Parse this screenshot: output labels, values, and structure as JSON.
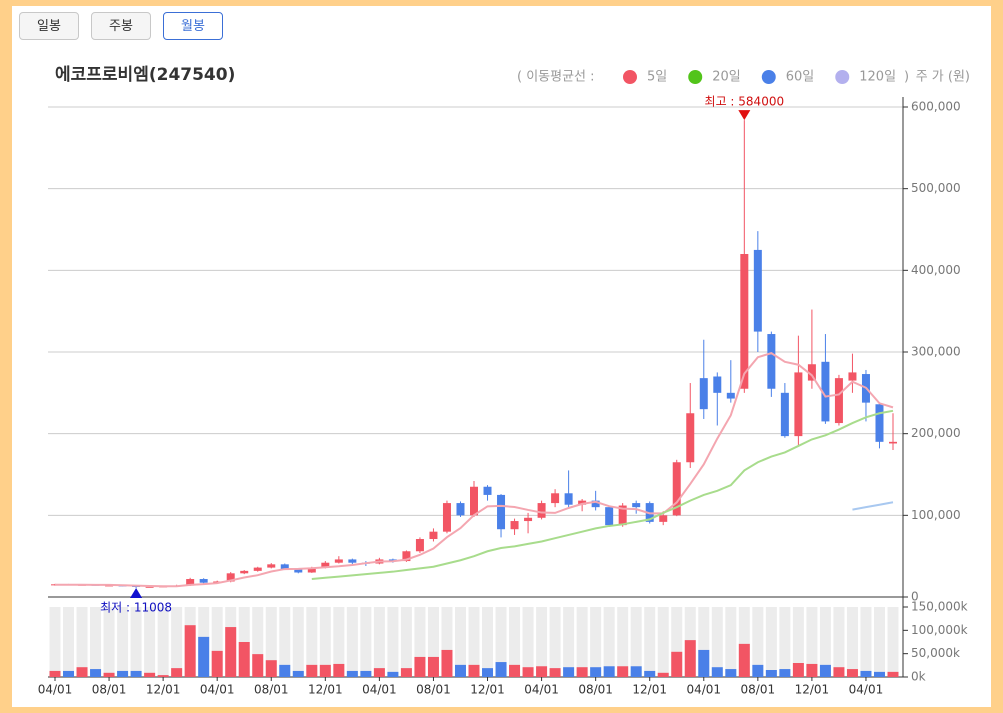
{
  "buttons": [
    "일봉",
    "주봉",
    "월봉"
  ],
  "selected_button": 2,
  "chart_data": {
    "type": "candlestick",
    "title": "에코프로비엠(247540)",
    "y_label": "주 가 (원)",
    "ma_legend_open": "( 이동평균선  :",
    "ma_legend_close": ")",
    "annotations": {
      "high": "최고 : 584000",
      "low": "최저 : 11008"
    },
    "up_color": "#f25564",
    "down_color": "#4a80e8",
    "categories": [
      "04/01",
      null,
      null,
      null,
      "08/01",
      null,
      null,
      null,
      "12/01",
      null,
      null,
      null,
      "04/01",
      null,
      null,
      null,
      "08/01",
      null,
      null,
      null,
      "12/01",
      null,
      null,
      null,
      "04/01",
      null,
      null,
      null,
      "08/01",
      null,
      null,
      null,
      "12/01",
      null,
      null,
      null,
      "04/01",
      null,
      null,
      null,
      "08/01",
      null,
      null,
      null,
      "12/01",
      null,
      null,
      null,
      "04/01",
      null,
      null,
      null,
      "08/01",
      null,
      null,
      null,
      "12/01",
      null,
      null,
      null,
      "04/01",
      null,
      null
    ],
    "open": [
      14500,
      15500,
      14800,
      15000,
      14000,
      14200,
      13500,
      12300,
      12500,
      13000,
      14000,
      22000,
      17500,
      19000,
      29000,
      32000,
      36000,
      40000,
      34000,
      30000,
      36000,
      42000,
      46000,
      42000,
      41000,
      46000,
      44000,
      56000,
      71000,
      80000,
      115000,
      100000,
      135000,
      125000,
      83000,
      93000,
      97000,
      115000,
      127000,
      113000,
      118000,
      110000,
      88000,
      115000,
      115000,
      92000,
      100000,
      165000,
      268000,
      270000,
      250000,
      255000,
      425000,
      322000,
      250000,
      197000,
      265000,
      288000,
      213000,
      265000,
      273000,
      236000,
      188000
    ],
    "high": [
      16000,
      16000,
      15500,
      15300,
      15000,
      14500,
      13800,
      13000,
      13500,
      15000,
      23500,
      23000,
      20000,
      30500,
      33000,
      37000,
      41500,
      41000,
      35000,
      37000,
      44000,
      50000,
      47000,
      44000,
      48000,
      47000,
      57000,
      73000,
      84000,
      118000,
      117000,
      142000,
      137000,
      126000,
      96000,
      103000,
      118000,
      132000,
      155000,
      120000,
      130000,
      112000,
      115000,
      118000,
      117000,
      105000,
      168000,
      262000,
      315000,
      275000,
      290000,
      584000,
      448000,
      325000,
      262000,
      320000,
      352000,
      322000,
      272000,
      298000,
      278000,
      238000,
      225000
    ],
    "low": [
      14000,
      14300,
      14200,
      14000,
      13500,
      13000,
      11008,
      11800,
      12000,
      12500,
      13500,
      16500,
      16500,
      18000,
      28000,
      31000,
      35000,
      33000,
      29000,
      29500,
      35000,
      41000,
      40000,
      38000,
      40000,
      42000,
      43000,
      54000,
      68000,
      78000,
      98000,
      98000,
      118000,
      73000,
      76000,
      78000,
      95000,
      110000,
      110000,
      105000,
      106000,
      86000,
      86000,
      102000,
      90000,
      88000,
      99000,
      158000,
      218000,
      210000,
      238000,
      250000,
      300000,
      245000,
      195000,
      185000,
      255000,
      212000,
      210000,
      250000,
      215000,
      182000,
      180000
    ],
    "close": [
      15500,
      14800,
      15000,
      14500,
      14200,
      13500,
      12500,
      12500,
      13000,
      14000,
      22000,
      17500,
      19000,
      29000,
      32000,
      36000,
      40000,
      34000,
      30000,
      36000,
      42000,
      46000,
      42000,
      41000,
      46000,
      44000,
      56000,
      71000,
      80000,
      115000,
      100000,
      135000,
      125000,
      83000,
      93000,
      97000,
      115000,
      127000,
      113000,
      118000,
      110000,
      88000,
      112000,
      110000,
      92000,
      100000,
      165000,
      225000,
      230000,
      250000,
      243000,
      420000,
      325000,
      255000,
      197000,
      275000,
      285000,
      215000,
      268000,
      275000,
      238000,
      190000,
      190000
    ],
    "volume": [
      13000,
      13000,
      21000,
      17000,
      9000,
      13000,
      13000,
      9000,
      4000,
      19000,
      111000,
      86000,
      56000,
      107000,
      75000,
      49000,
      36000,
      26000,
      13000,
      26000,
      26000,
      28000,
      13000,
      13000,
      19000,
      11000,
      19000,
      43000,
      43000,
      58000,
      26000,
      26000,
      19000,
      32000,
      26000,
      21000,
      23000,
      19000,
      21000,
      21000,
      21000,
      23000,
      23000,
      23000,
      13000,
      9000,
      54000,
      79000,
      58000,
      21000,
      17000,
      71000,
      26000,
      15000,
      17000,
      30000,
      28000,
      26000,
      21000,
      17000,
      13000,
      11000,
      11000
    ],
    "ylim": [
      0,
      600000
    ],
    "yticks": [
      0,
      {
        "value": 100000,
        "label": "100,000"
      },
      {
        "value": 200000,
        "label": "200,000"
      },
      {
        "value": 300000,
        "label": "300,000"
      },
      {
        "value": 400000,
        "label": "400,000"
      },
      {
        "value": 500000,
        "label": "500,000"
      },
      {
        "value": 600000,
        "label": "600,000"
      }
    ],
    "volume_ylim": [
      0,
      150000
    ],
    "volume_ticks": [
      {
        "value": 0,
        "label": "0k"
      },
      {
        "value": 50000,
        "label": "50,000k"
      },
      {
        "value": 100000,
        "label": "100,000k"
      },
      {
        "value": 150000,
        "label": "150,000k"
      }
    ],
    "grid": true,
    "series": [
      {
        "name": "5일",
        "color": "#f25564",
        "line_color": "#f4a6b0",
        "values": [
          15000,
          15000,
          15000,
          14800,
          14800,
          14400,
          13900,
          13400,
          13100,
          13100,
          14800,
          15800,
          17000,
          20300,
          23900,
          26700,
          31200,
          34200,
          34400,
          35200,
          36400,
          37600,
          39200,
          41400,
          43400,
          43800,
          45800,
          51600,
          59400,
          73200,
          84400,
          100200,
          111000,
          111600,
          110200,
          106600,
          103400,
          103000,
          109000,
          114000,
          116600,
          111200,
          108200,
          107600,
          102400,
          102400,
          115800,
          138400,
          162400,
          194000,
          222600,
          273600,
          293600,
          298600,
          288000,
          284400,
          271400,
          245400,
          248000,
          263600,
          256200,
          237200,
          232200
        ]
      },
      {
        "name": "20일",
        "color": "#52c41a",
        "line_color": "#a8dc8c",
        "values": [
          null,
          null,
          null,
          null,
          null,
          null,
          null,
          null,
          null,
          null,
          null,
          null,
          null,
          null,
          null,
          null,
          null,
          null,
          null,
          22000,
          23500,
          25000,
          26500,
          28000,
          29500,
          31000,
          33000,
          35000,
          37000,
          41000,
          45000,
          50000,
          56000,
          60000,
          62000,
          65000,
          68000,
          72000,
          76000,
          80000,
          84000,
          87000,
          89000,
          92000,
          95000,
          103000,
          110000,
          118000,
          125000,
          130000,
          137000,
          155000,
          165000,
          172000,
          177000,
          185000,
          193000,
          198000,
          205000,
          213000,
          220000,
          225000,
          228000
        ]
      },
      {
        "name": "60일",
        "color": "#4a80e8",
        "line_color": "#a8c8f0",
        "values": [
          null,
          null,
          null,
          null,
          null,
          null,
          null,
          null,
          null,
          null,
          null,
          null,
          null,
          null,
          null,
          null,
          null,
          null,
          null,
          null,
          null,
          null,
          null,
          null,
          null,
          null,
          null,
          null,
          null,
          null,
          null,
          null,
          null,
          null,
          null,
          null,
          null,
          null,
          null,
          null,
          null,
          null,
          null,
          null,
          null,
          null,
          null,
          null,
          null,
          null,
          null,
          null,
          null,
          null,
          null,
          null,
          null,
          null,
          null,
          107000,
          110000,
          113000,
          116000
        ]
      },
      {
        "name": "120일",
        "color": "#b3b0ee",
        "line_color": "#c9c6f2",
        "values": [
          null,
          null,
          null,
          null,
          null,
          null,
          null,
          null,
          null,
          null,
          null,
          null,
          null,
          null,
          null,
          null,
          null,
          null,
          null,
          null,
          null,
          null,
          null,
          null,
          null,
          null,
          null,
          null,
          null,
          null,
          null,
          null,
          null,
          null,
          null,
          null,
          null,
          null,
          null,
          null,
          null,
          null,
          null,
          null,
          null,
          null,
          null,
          null,
          null,
          null,
          null,
          null,
          null,
          null,
          null,
          null,
          null,
          null,
          null,
          null,
          null,
          null,
          null
        ]
      }
    ]
  }
}
